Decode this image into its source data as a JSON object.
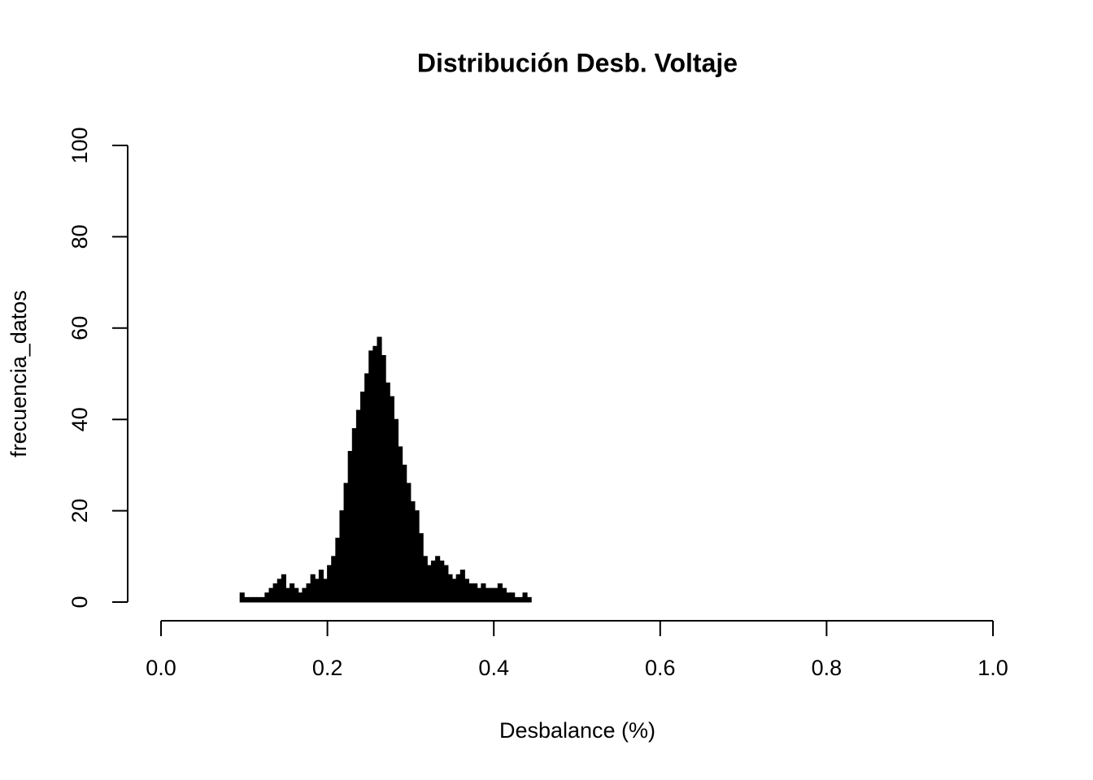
{
  "chart_data": {
    "type": "histogram",
    "title": "Distribución Desb. Voltaje",
    "xlabel": "Desbalance (%)",
    "ylabel": "frecuencia_datos",
    "color": "#000000",
    "bins": [
      0.095,
      0.1,
      0.105,
      0.11,
      0.115,
      0.12,
      0.125,
      0.13,
      0.135,
      0.14,
      0.145,
      0.15,
      0.155,
      0.16,
      0.165,
      0.17,
      0.175,
      0.18,
      0.185,
      0.19,
      0.195,
      0.2,
      0.205,
      0.21,
      0.215,
      0.22,
      0.225,
      0.23,
      0.235,
      0.24,
      0.245,
      0.25,
      0.255,
      0.26,
      0.265,
      0.27,
      0.275,
      0.28,
      0.285,
      0.29,
      0.295,
      0.3,
      0.305,
      0.31,
      0.315,
      0.32,
      0.325,
      0.33,
      0.335,
      0.34,
      0.345,
      0.35,
      0.355,
      0.36,
      0.365,
      0.37,
      0.375,
      0.38,
      0.385,
      0.39,
      0.395,
      0.4,
      0.405,
      0.41,
      0.415,
      0.42,
      0.425,
      0.43,
      0.435,
      0.44,
      0.445
    ],
    "values": [
      2,
      1,
      1,
      1,
      1,
      1,
      2,
      3,
      4,
      5,
      6,
      3,
      4,
      3,
      2,
      3,
      4,
      6,
      5,
      7,
      5,
      8,
      10,
      14,
      20,
      26,
      33,
      38,
      42,
      46,
      50,
      55,
      56,
      58,
      54,
      48,
      45,
      40,
      34,
      30,
      26,
      22,
      20,
      15,
      10,
      8,
      9,
      10,
      9,
      8,
      6,
      5,
      6,
      7,
      5,
      4,
      4,
      3,
      4,
      3,
      3,
      3,
      4,
      3,
      2,
      2,
      1,
      1,
      2,
      1
    ],
    "xlim": [
      0,
      1
    ],
    "xticks": [
      {
        "value": 0,
        "label": "0.0"
      },
      0.2,
      0.4,
      0.6,
      0.8,
      {
        "value": 1,
        "label": "1.0"
      }
    ],
    "ylim": [
      0,
      100
    ],
    "yticks": [
      0,
      20,
      40,
      60,
      80,
      100
    ]
  }
}
